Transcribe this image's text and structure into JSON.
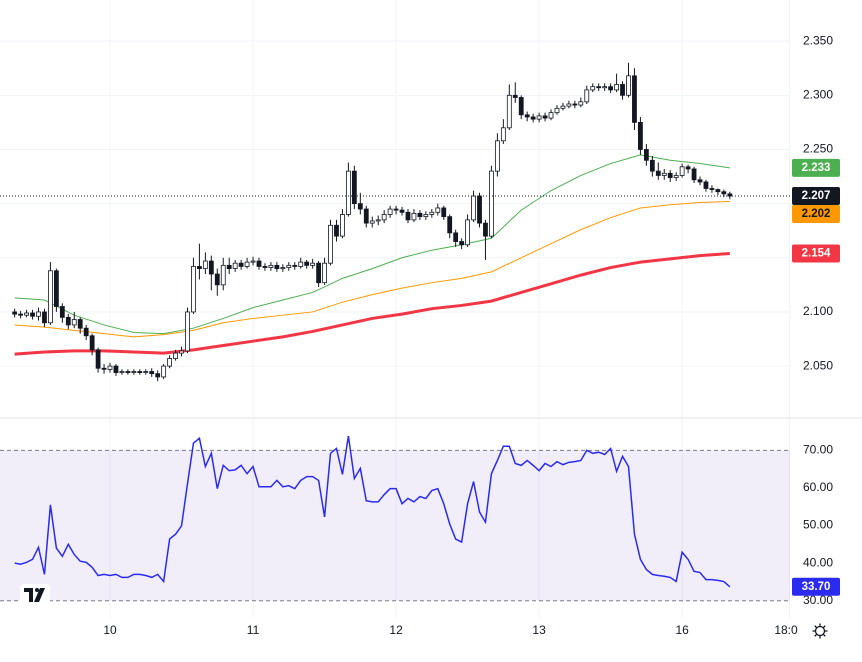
{
  "chart_data": {
    "type": "candlestick",
    "xlim": [
      -2.46,
      130.1
    ],
    "xticks": [
      {
        "value": 16,
        "label": "10"
      },
      {
        "value": 40,
        "label": "11"
      },
      {
        "value": 64,
        "label": "12"
      },
      {
        "value": 88,
        "label": "13"
      },
      {
        "value": 112,
        "label": "16"
      },
      {
        "value": 130,
        "label": "18:0"
      }
    ],
    "ylim": [
      2.003,
      2.388
    ],
    "yticks": [
      {
        "value": 2.05,
        "label": "2.050"
      },
      {
        "value": 2.1,
        "label": "2.100"
      },
      {
        "value": 2.15,
        "label": "2.150"
      },
      {
        "value": 2.2,
        "label": "2.200"
      },
      {
        "value": 2.25,
        "label": "2.250"
      },
      {
        "value": 2.3,
        "label": "2.300"
      },
      {
        "value": 2.35,
        "label": "2.350"
      }
    ],
    "grid": true,
    "up_color": "#ffffff",
    "down_color": "#131722",
    "x": [
      0,
      1,
      2,
      3,
      4,
      5,
      6,
      7,
      8,
      9,
      10,
      11,
      12,
      13,
      14,
      15,
      16,
      17,
      18,
      19,
      20,
      21,
      22,
      23,
      24,
      25,
      26,
      27,
      28,
      29,
      30,
      31,
      32,
      33,
      34,
      35,
      36,
      37,
      38,
      39,
      40,
      41,
      42,
      43,
      44,
      45,
      46,
      47,
      48,
      49,
      50,
      51,
      52,
      53,
      54,
      55,
      56,
      57,
      58,
      59,
      60,
      61,
      62,
      63,
      64,
      65,
      66,
      67,
      68,
      69,
      70,
      71,
      72,
      73,
      74,
      75,
      76,
      77,
      78,
      79,
      80,
      81,
      82,
      83,
      84,
      85,
      86,
      87,
      88,
      89,
      90,
      91,
      92,
      93,
      94,
      95,
      96,
      97,
      98,
      99,
      100,
      101,
      102,
      103,
      104,
      105,
      106,
      107,
      108,
      109,
      110,
      111,
      112,
      113,
      114,
      115,
      116,
      117,
      118,
      119,
      120
    ],
    "candles": {
      "open": [
        2.1,
        2.098,
        2.097,
        2.099,
        2.096,
        2.1,
        2.09,
        2.138,
        2.105,
        2.095,
        2.088,
        2.093,
        2.085,
        2.078,
        2.065,
        2.048,
        2.047,
        2.05,
        2.044,
        2.045,
        2.044,
        2.045,
        2.044,
        2.045,
        2.043,
        2.04,
        2.05,
        2.057,
        2.062,
        2.064,
        2.1,
        2.142,
        2.14,
        2.147,
        2.135,
        2.125,
        2.143,
        2.14,
        2.145,
        2.142,
        2.146,
        2.147,
        2.142,
        2.141,
        2.143,
        2.14,
        2.141,
        2.143,
        2.142,
        2.146,
        2.143,
        2.145,
        2.127,
        2.145,
        2.18,
        2.17,
        2.19,
        2.23,
        2.2,
        2.195,
        2.182,
        2.184,
        2.185,
        2.19,
        2.195,
        2.194,
        2.192,
        2.185,
        2.191,
        2.188,
        2.19,
        2.192,
        2.196,
        2.188,
        2.173,
        2.165,
        2.162,
        2.185,
        2.207,
        2.182,
        2.17,
        2.23,
        2.258,
        2.27,
        2.3,
        2.298,
        2.282,
        2.28,
        2.278,
        2.281,
        2.279,
        2.284,
        2.288,
        2.29,
        2.292,
        2.291,
        2.294,
        2.305,
        2.308,
        2.307,
        2.308,
        2.305,
        2.31,
        2.3,
        2.318,
        2.275,
        2.25,
        2.24,
        2.23,
        2.226,
        2.228,
        2.224,
        2.226,
        2.234,
        2.232,
        2.222,
        2.22,
        2.214,
        2.213,
        2.211,
        2.209
      ],
      "high": [
        2.103,
        2.101,
        2.102,
        2.102,
        2.104,
        2.103,
        2.146,
        2.14,
        2.108,
        2.098,
        2.1,
        2.095,
        2.088,
        2.08,
        2.067,
        2.052,
        2.053,
        2.052,
        2.047,
        2.047,
        2.047,
        2.047,
        2.047,
        2.048,
        2.046,
        2.052,
        2.06,
        2.065,
        2.068,
        2.104,
        2.15,
        2.163,
        2.155,
        2.152,
        2.14,
        2.15,
        2.15,
        2.148,
        2.148,
        2.15,
        2.151,
        2.15,
        2.145,
        2.146,
        2.146,
        2.144,
        2.146,
        2.146,
        2.15,
        2.148,
        2.149,
        2.147,
        2.15,
        2.185,
        2.185,
        2.195,
        2.238,
        2.235,
        2.21,
        2.198,
        2.188,
        2.189,
        2.194,
        2.198,
        2.198,
        2.197,
        2.195,
        2.195,
        2.194,
        2.193,
        2.195,
        2.2,
        2.198,
        2.19,
        2.176,
        2.168,
        2.19,
        2.212,
        2.21,
        2.185,
        2.235,
        2.265,
        2.278,
        2.31,
        2.312,
        2.3,
        2.285,
        2.283,
        2.284,
        2.284,
        2.287,
        2.291,
        2.293,
        2.295,
        2.295,
        2.298,
        2.309,
        2.311,
        2.311,
        2.311,
        2.311,
        2.32,
        2.313,
        2.33,
        2.325,
        2.28,
        2.255,
        2.244,
        2.238,
        2.232,
        2.231,
        2.229,
        2.237,
        2.236,
        2.234,
        2.225,
        2.222,
        2.217,
        2.214,
        2.213,
        2.211
      ],
      "low": [
        2.095,
        2.094,
        2.095,
        2.093,
        2.092,
        2.086,
        2.088,
        2.1,
        2.09,
        2.084,
        2.085,
        2.08,
        2.074,
        2.06,
        2.044,
        2.043,
        2.044,
        2.041,
        2.042,
        2.042,
        2.042,
        2.042,
        2.042,
        2.04,
        2.036,
        2.038,
        2.048,
        2.055,
        2.059,
        2.062,
        2.098,
        2.13,
        2.135,
        2.12,
        2.115,
        2.12,
        2.135,
        2.137,
        2.139,
        2.14,
        2.143,
        2.139,
        2.138,
        2.138,
        2.137,
        2.137,
        2.138,
        2.139,
        2.14,
        2.14,
        2.14,
        2.123,
        2.125,
        2.143,
        2.165,
        2.168,
        2.188,
        2.195,
        2.19,
        2.178,
        2.178,
        2.18,
        2.182,
        2.187,
        2.19,
        2.189,
        2.182,
        2.183,
        2.185,
        2.185,
        2.187,
        2.189,
        2.185,
        2.168,
        2.16,
        2.158,
        2.16,
        2.183,
        2.178,
        2.148,
        2.168,
        2.225,
        2.255,
        2.268,
        2.293,
        2.278,
        2.276,
        2.275,
        2.275,
        2.276,
        2.277,
        2.282,
        2.286,
        2.288,
        2.288,
        2.289,
        2.292,
        2.303,
        2.304,
        2.304,
        2.302,
        2.303,
        2.296,
        2.298,
        2.268,
        2.245,
        2.235,
        2.225,
        2.222,
        2.222,
        2.22,
        2.221,
        2.224,
        2.228,
        2.219,
        2.217,
        2.211,
        2.21,
        2.208,
        2.206,
        2.204
      ],
      "close": [
        2.098,
        2.097,
        2.099,
        2.096,
        2.1,
        2.09,
        2.138,
        2.105,
        2.095,
        2.088,
        2.093,
        2.085,
        2.078,
        2.065,
        2.048,
        2.047,
        2.05,
        2.044,
        2.045,
        2.044,
        2.045,
        2.044,
        2.045,
        2.043,
        2.04,
        2.05,
        2.057,
        2.062,
        2.064,
        2.1,
        2.142,
        2.14,
        2.147,
        2.135,
        2.125,
        2.143,
        2.14,
        2.145,
        2.142,
        2.146,
        2.147,
        2.142,
        2.141,
        2.143,
        2.14,
        2.141,
        2.143,
        2.142,
        2.146,
        2.143,
        2.145,
        2.127,
        2.145,
        2.18,
        2.17,
        2.19,
        2.23,
        2.2,
        2.195,
        2.182,
        2.184,
        2.185,
        2.19,
        2.195,
        2.194,
        2.192,
        2.185,
        2.191,
        2.188,
        2.19,
        2.192,
        2.196,
        2.188,
        2.173,
        2.165,
        2.162,
        2.185,
        2.207,
        2.182,
        2.17,
        2.23,
        2.258,
        2.27,
        2.3,
        2.298,
        2.282,
        2.28,
        2.278,
        2.281,
        2.279,
        2.284,
        2.288,
        2.29,
        2.292,
        2.291,
        2.294,
        2.305,
        2.308,
        2.307,
        2.308,
        2.305,
        2.31,
        2.3,
        2.318,
        2.275,
        2.25,
        2.24,
        2.23,
        2.226,
        2.228,
        2.224,
        2.226,
        2.234,
        2.232,
        2.222,
        2.22,
        2.214,
        2.213,
        2.211,
        2.209,
        2.207
      ]
    },
    "line_x": [
      0,
      5,
      10,
      15,
      20,
      25,
      30,
      35,
      40,
      45,
      50,
      55,
      60,
      65,
      70,
      75,
      80,
      85,
      90,
      95,
      100,
      105,
      110,
      115,
      120
    ],
    "lines": [
      {
        "color": "#4caf50",
        "width": 1,
        "tag_text": "#ffffff",
        "values": [
          2.113,
          2.111,
          2.097,
          2.088,
          2.081,
          2.08,
          2.085,
          2.094,
          2.104,
          2.111,
          2.118,
          2.131,
          2.14,
          2.15,
          2.157,
          2.162,
          2.168,
          2.194,
          2.212,
          2.226,
          2.237,
          2.245,
          2.24,
          2.237,
          2.233
        ]
      },
      {
        "color": "#ff9800",
        "width": 1,
        "tag_text": "#131722",
        "values": [
          2.088,
          2.086,
          2.083,
          2.08,
          2.077,
          2.079,
          2.083,
          2.09,
          2.094,
          2.097,
          2.1,
          2.109,
          2.116,
          2.122,
          2.127,
          2.131,
          2.137,
          2.15,
          2.163,
          2.176,
          2.187,
          2.196,
          2.199,
          2.201,
          2.202
        ]
      },
      {
        "color": "#f23645",
        "width": 3,
        "tag_text": "#ffffff",
        "values": [
          2.061,
          2.063,
          2.064,
          2.064,
          2.063,
          2.062,
          2.065,
          2.069,
          2.073,
          2.077,
          2.082,
          2.088,
          2.094,
          2.098,
          2.103,
          2.106,
          2.11,
          2.118,
          2.126,
          2.134,
          2.141,
          2.146,
          2.149,
          2.152,
          2.154
        ]
      }
    ],
    "rsi": {
      "color": "#2b2bf0",
      "ylim": [
        25.4,
        78.6
      ],
      "yticks": [
        {
          "value": 30,
          "label": "30.00"
        },
        {
          "value": 40,
          "label": "40.00"
        },
        {
          "value": 50,
          "label": "50.00"
        },
        {
          "value": 60,
          "label": "60.00"
        },
        {
          "value": 70,
          "label": "70.00"
        }
      ],
      "band": [
        30,
        70
      ],
      "value_label": "33.70",
      "values": [
        40.0,
        39.7,
        40.2,
        41.0,
        44.2,
        37.0,
        55.5,
        44.0,
        41.8,
        45.0,
        42.3,
        40.5,
        40.2,
        38.9,
        36.7,
        37.0,
        36.7,
        37.0,
        36.2,
        36.2,
        37.0,
        37.0,
        36.7,
        36.2,
        37.0,
        35.1,
        46.4,
        47.7,
        49.9,
        61.1,
        71.9,
        73.2,
        65.7,
        69.2,
        59.8,
        66.0,
        64.6,
        64.8,
        66.0,
        63.8,
        65.7,
        60.3,
        60.3,
        60.3,
        62.0,
        60.3,
        60.6,
        59.8,
        62.0,
        63.0,
        63.0,
        62.0,
        52.3,
        69.2,
        70.5,
        63.6,
        73.8,
        62.5,
        65.2,
        56.6,
        56.3,
        56.3,
        58.2,
        59.8,
        59.8,
        55.8,
        57.2,
        56.3,
        57.7,
        57.2,
        59.3,
        59.8,
        55.8,
        50.4,
        46.4,
        45.6,
        55.8,
        61.7,
        53.6,
        50.9,
        63.8,
        67.3,
        71.1,
        71.1,
        66.5,
        66.0,
        67.3,
        66.0,
        64.6,
        66.5,
        65.7,
        67.0,
        66.2,
        66.8,
        67.0,
        67.3,
        70.0,
        69.2,
        69.5,
        68.9,
        70.5,
        64.4,
        68.4,
        65.7,
        47.7,
        41.0,
        38.3,
        37.0,
        36.7,
        36.5,
        36.2,
        35.1,
        42.9,
        41.0,
        37.8,
        37.5,
        35.6,
        35.6,
        35.4,
        35.1,
        33.7
      ]
    }
  }
}
